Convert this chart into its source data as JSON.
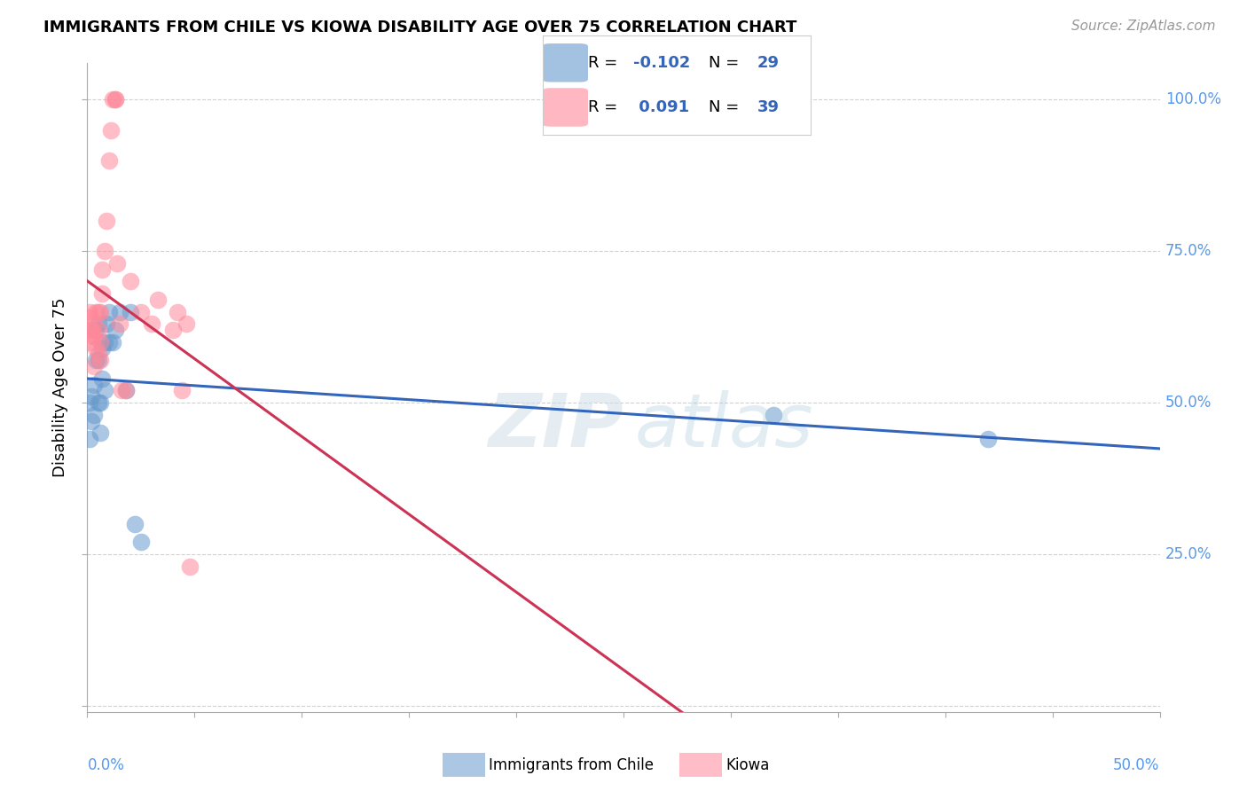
{
  "title": "IMMIGRANTS FROM CHILE VS KIOWA DISABILITY AGE OVER 75 CORRELATION CHART",
  "source": "Source: ZipAtlas.com",
  "ylabel": "Disability Age Over 75",
  "xlim": [
    0.0,
    0.5
  ],
  "ylim": [
    -0.01,
    1.06
  ],
  "blue_R": -0.102,
  "blue_N": 29,
  "pink_R": 0.091,
  "pink_N": 39,
  "blue_color": "#6699CC",
  "pink_color": "#FF8899",
  "blue_line_color": "#3366BB",
  "pink_line_color": "#CC3355",
  "right_axis_color": "#5599EE",
  "blue_label": "Immigrants from Chile",
  "pink_label": "Kiowa",
  "blue_x": [
    0.001,
    0.001,
    0.002,
    0.002,
    0.003,
    0.003,
    0.004,
    0.004,
    0.005,
    0.005,
    0.005,
    0.006,
    0.006,
    0.007,
    0.007,
    0.008,
    0.008,
    0.009,
    0.01,
    0.01,
    0.012,
    0.013,
    0.015,
    0.018,
    0.02,
    0.022,
    0.025,
    0.32,
    0.42
  ],
  "blue_y": [
    0.5,
    0.44,
    0.51,
    0.47,
    0.53,
    0.48,
    0.57,
    0.62,
    0.5,
    0.57,
    0.63,
    0.5,
    0.45,
    0.59,
    0.54,
    0.6,
    0.52,
    0.63,
    0.65,
    0.6,
    0.6,
    0.62,
    0.65,
    0.52,
    0.65,
    0.3,
    0.27,
    0.48,
    0.44
  ],
  "pink_x": [
    0.001,
    0.001,
    0.001,
    0.002,
    0.002,
    0.002,
    0.003,
    0.003,
    0.003,
    0.004,
    0.004,
    0.005,
    0.005,
    0.005,
    0.006,
    0.006,
    0.006,
    0.007,
    0.007,
    0.008,
    0.009,
    0.01,
    0.011,
    0.012,
    0.013,
    0.013,
    0.014,
    0.015,
    0.016,
    0.018,
    0.02,
    0.025,
    0.03,
    0.033,
    0.04,
    0.042,
    0.044,
    0.046,
    0.048
  ],
  "pink_y": [
    0.62,
    0.64,
    0.65,
    0.6,
    0.62,
    0.61,
    0.63,
    0.56,
    0.61,
    0.59,
    0.65,
    0.58,
    0.62,
    0.65,
    0.65,
    0.57,
    0.6,
    0.72,
    0.68,
    0.75,
    0.8,
    0.9,
    0.95,
    1.0,
    1.0,
    1.0,
    0.73,
    0.63,
    0.52,
    0.52,
    0.7,
    0.65,
    0.63,
    0.67,
    0.62,
    0.65,
    0.52,
    0.63,
    0.23
  ],
  "ytick_positions": [
    0.0,
    0.25,
    0.5,
    0.75,
    1.0
  ],
  "xtick_positions": [
    0.0,
    0.05,
    0.1,
    0.15,
    0.2,
    0.25,
    0.3,
    0.35,
    0.4,
    0.45,
    0.5
  ]
}
